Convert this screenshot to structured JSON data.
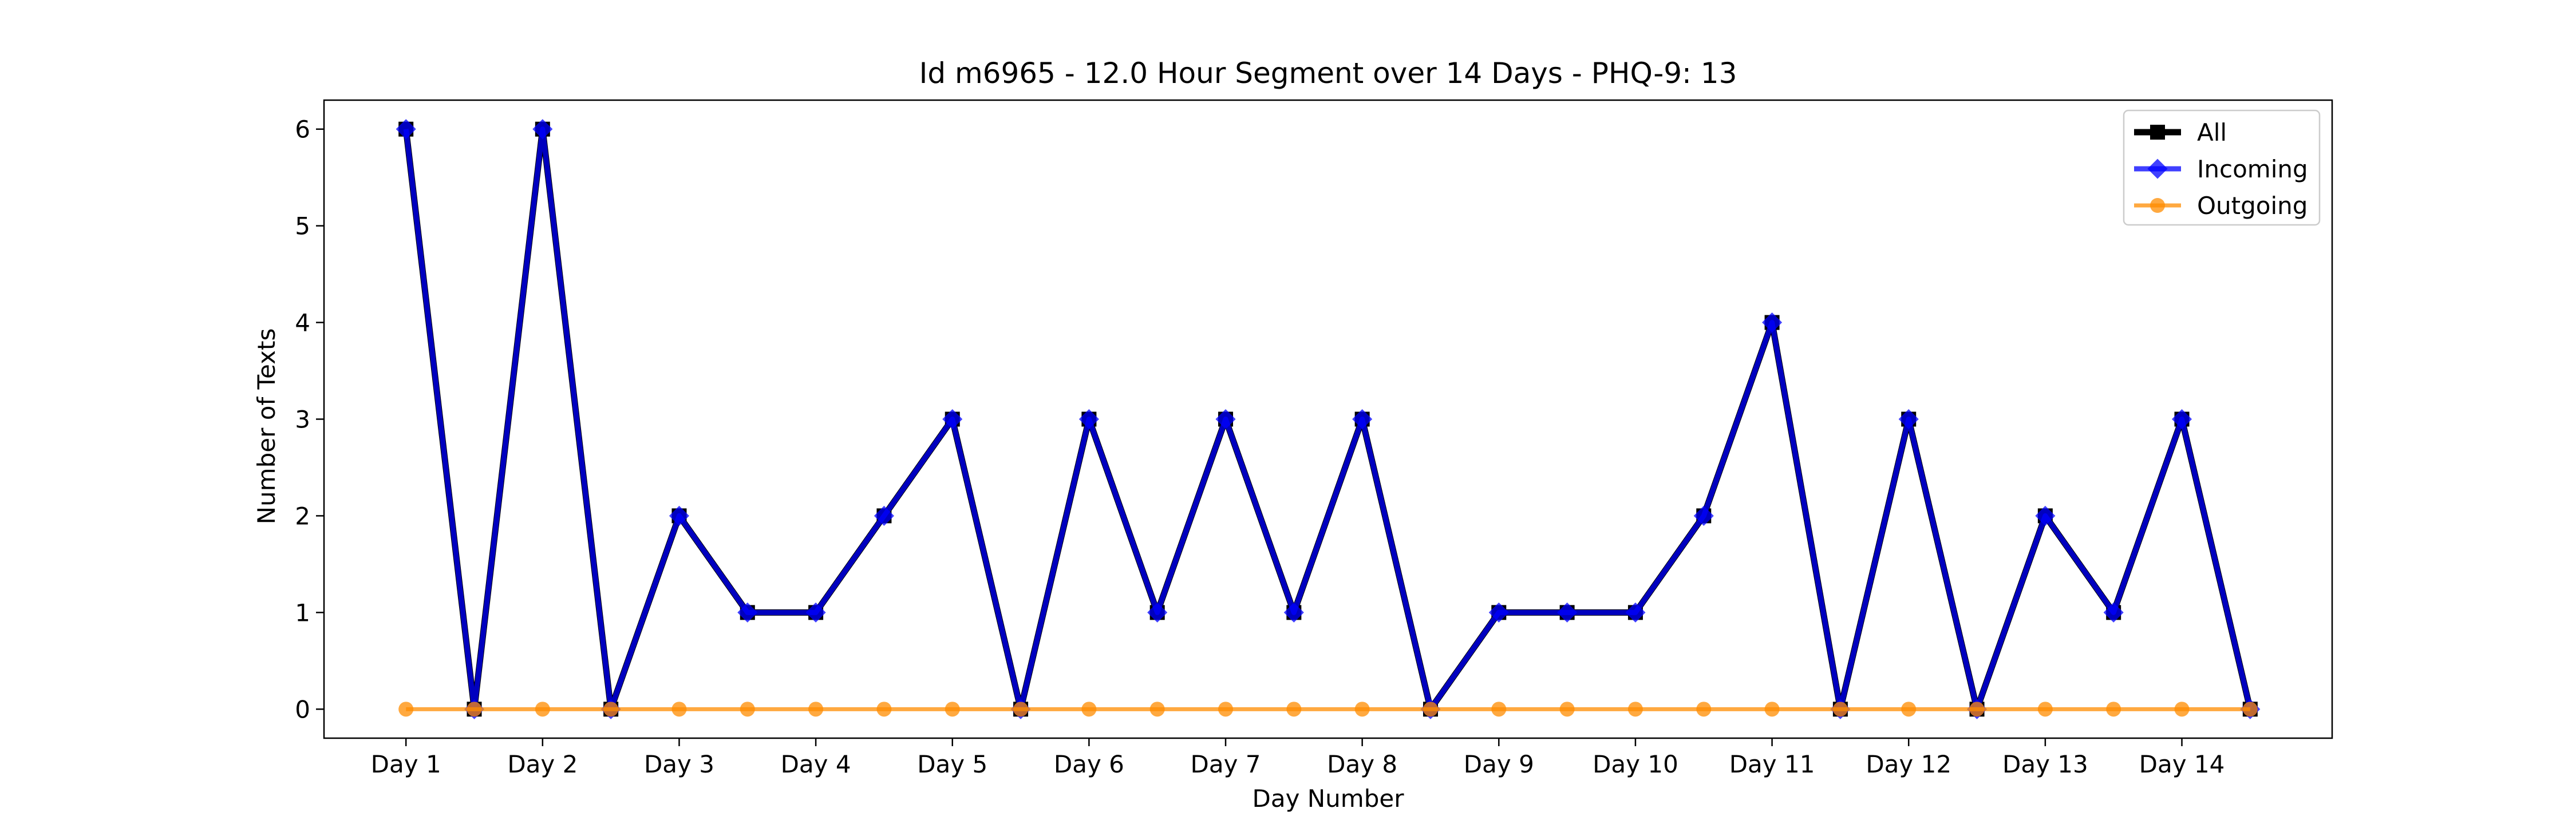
{
  "chart_data": {
    "type": "line",
    "title": "Id m6965 - 12.0 Hour Segment over 14 Days - PHQ-9: 13",
    "xlabel": "Day Number",
    "ylabel": "Number of Texts",
    "categories": [
      "Day 1",
      "Day 2",
      "Day 3",
      "Day 4",
      "Day 5",
      "Day 6",
      "Day 7",
      "Day 8",
      "Day 9",
      "Day 10",
      "Day 11",
      "Day 12",
      "Day 13",
      "Day 14"
    ],
    "x": [
      1,
      1.5,
      2,
      2.5,
      3,
      3.5,
      4,
      4.5,
      5,
      5.5,
      6,
      6.5,
      7,
      7.5,
      8,
      8.5,
      9,
      9.5,
      10,
      10.5,
      11,
      11.5,
      12,
      12.5,
      13,
      13.5,
      14,
      14.5
    ],
    "yticks": [
      0,
      1,
      2,
      3,
      4,
      5,
      6
    ],
    "ylim": [
      -0.3,
      6.3
    ],
    "xlim": [
      0.4,
      15.1
    ],
    "grid": false,
    "legend_position": "top-right",
    "series": [
      {
        "name": "All",
        "color": "#000000",
        "marker": "square",
        "values": [
          6,
          0,
          6,
          0,
          2,
          1,
          1,
          2,
          3,
          0,
          3,
          1,
          3,
          1,
          3,
          0,
          1,
          1,
          1,
          2,
          4,
          0,
          3,
          0,
          2,
          1,
          3,
          0
        ]
      },
      {
        "name": "Incoming",
        "color": "#0000ff",
        "marker": "diamond",
        "values": [
          6,
          0,
          6,
          0,
          2,
          1,
          1,
          2,
          3,
          0,
          3,
          1,
          3,
          1,
          3,
          0,
          1,
          1,
          1,
          2,
          4,
          0,
          3,
          0,
          2,
          1,
          3,
          0
        ]
      },
      {
        "name": "Outgoing",
        "color": "#ff8c00",
        "marker": "circle",
        "values": [
          0,
          0,
          0,
          0,
          0,
          0,
          0,
          0,
          0,
          0,
          0,
          0,
          0,
          0,
          0,
          0,
          0,
          0,
          0,
          0,
          0,
          0,
          0,
          0,
          0,
          0,
          0,
          0
        ]
      }
    ]
  }
}
